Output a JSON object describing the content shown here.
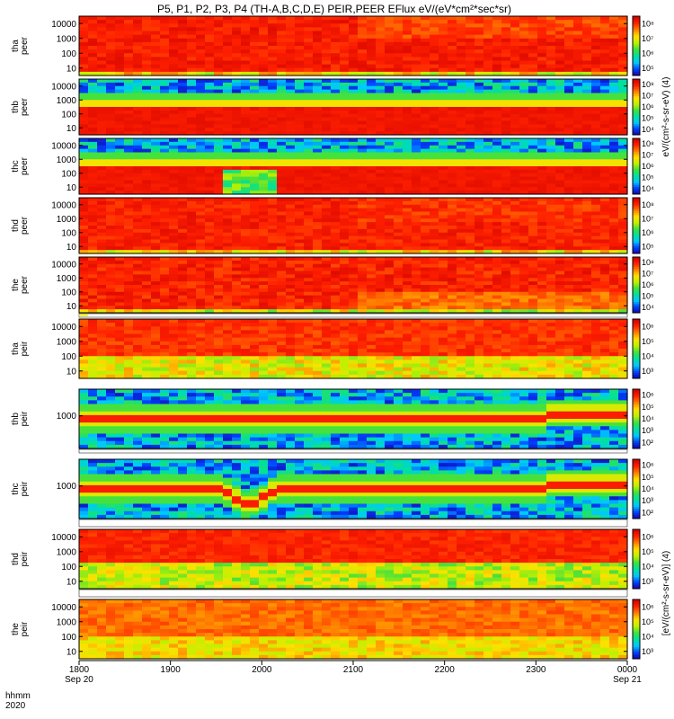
{
  "title": "P5, P1, P2, P3, P4 (TH-A,B,C,D,E) PEIR,PEER EFlux eV/(eV*cm²*sec*sr)",
  "corner_labels": {
    "row1": "hhmm",
    "row2": "2020"
  },
  "time_axis": {
    "ticks": [
      {
        "label": "1800",
        "sublabel": "Sep 20"
      },
      {
        "label": "1900",
        "sublabel": ""
      },
      {
        "label": "2000",
        "sublabel": ""
      },
      {
        "label": "2100",
        "sublabel": ""
      },
      {
        "label": "2200",
        "sublabel": ""
      },
      {
        "label": "2300",
        "sublabel": ""
      },
      {
        "label": "0000",
        "sublabel": "Sep 21"
      }
    ]
  },
  "colorbar_label_top": "eV/(cm²-s-sr-eV) (4)",
  "colorbar_label_bottom": "[eV/(cm²-s-sr-eV)] (4)",
  "colors": {
    "background": "#ffffff",
    "quality_bar_bad": "#000000",
    "quality_bar_warn": "#ffff00",
    "colormap": [
      "#1a00a0",
      "#0040ff",
      "#00c8ff",
      "#00e0a0",
      "#40e040",
      "#c0f000",
      "#ffe000",
      "#ff8000",
      "#ff2000",
      "#d00000"
    ]
  },
  "chart_data": [
    {
      "type": "heatmap",
      "probe": "tha",
      "species": "peer",
      "ylabel": "tha\npeer",
      "yticks": [
        "10",
        "100",
        "1000",
        "10000"
      ],
      "yscale": "log",
      "colorbar_ticks": [
        "10⁵",
        "10⁶",
        "10⁷",
        "10⁸"
      ],
      "description": "Electron spectrogram, high energy flux (red) from ~10 eV to 10000 eV throughout"
    },
    {
      "type": "heatmap",
      "probe": "thb",
      "species": "peer",
      "ylabel": "thb\npeer",
      "yticks": [
        "10",
        "100",
        "1000",
        "10000"
      ],
      "yscale": "log",
      "colorbar_ticks": [
        "10⁴",
        "10⁵",
        "10⁶",
        "10⁷",
        "10⁸"
      ],
      "description": "Flux peaks below ~500 eV, noisy blue above ~1000 eV"
    },
    {
      "type": "heatmap",
      "probe": "thc",
      "species": "peer",
      "ylabel": "thc\npeer",
      "yticks": [
        "10",
        "100",
        "1000",
        "10000"
      ],
      "yscale": "log",
      "colorbar_ticks": [
        "10⁴",
        "10⁵",
        "10⁶",
        "10⁷",
        "10⁸"
      ],
      "description": "Similar to thb, with low-flux gap near 1950-2000"
    },
    {
      "type": "heatmap",
      "probe": "thd",
      "species": "peer",
      "ylabel": "thd\npeer",
      "yticks": [
        "10",
        "100",
        "1000",
        "10000"
      ],
      "yscale": "log",
      "colorbar_ticks": [
        "10⁵",
        "10⁶",
        "10⁷",
        "10⁸"
      ],
      "description": "High flux, change in character after ~2110"
    },
    {
      "type": "heatmap",
      "probe": "the",
      "species": "peer",
      "ylabel": "the\npeer",
      "yticks": [
        "10",
        "100",
        "1000",
        "10000"
      ],
      "yscale": "log",
      "colorbar_ticks": [
        "10⁴",
        "10⁵",
        "10⁶",
        "10⁷",
        "10⁸"
      ],
      "description": "High flux, change in character after ~2110"
    },
    {
      "type": "heatmap",
      "probe": "tha",
      "species": "peir",
      "ylabel": "tha\npeir",
      "yticks": [
        "10",
        "100",
        "1000",
        "10000"
      ],
      "yscale": "log",
      "colorbar_ticks": [
        "10³",
        "10⁴",
        "10⁵",
        "10⁶"
      ],
      "description": "Ion spectrogram, red flux above ~100 eV"
    },
    {
      "type": "heatmap",
      "probe": "thb",
      "species": "peir",
      "ylabel": "thb\npeir",
      "yticks": [
        "1000"
      ],
      "yscale": "log",
      "colorbar_ticks": [
        "10²",
        "10³",
        "10⁴",
        "10⁵",
        "10⁶"
      ],
      "description": "Narrow red band near ~700 eV rising after ~2330"
    },
    {
      "type": "heatmap",
      "probe": "thc",
      "species": "peir",
      "ylabel": "thc\npeir",
      "yticks": [
        "1000"
      ],
      "yscale": "log",
      "colorbar_ticks": [
        "10²",
        "10³",
        "10⁴",
        "10⁵",
        "10⁶"
      ],
      "description": "Narrow red band near ~700 eV with V-shaped dip near 1950-2000"
    },
    {
      "type": "heatmap",
      "probe": "thd",
      "species": "peir",
      "ylabel": "thd\npeir",
      "yticks": [
        "10",
        "100",
        "1000",
        "10000"
      ],
      "yscale": "log",
      "colorbar_ticks": [
        "10³",
        "10⁴",
        "10⁵",
        "10⁶"
      ],
      "description": "Red flux above ~1000 eV"
    },
    {
      "type": "heatmap",
      "probe": "the",
      "species": "peir",
      "ylabel": "the\npeir",
      "yticks": [
        "10",
        "100",
        "1000",
        "10000"
      ],
      "yscale": "log",
      "colorbar_ticks": [
        "10³",
        "10⁴",
        "10⁵",
        "10⁶"
      ],
      "description": "Orange/yellow flux above ~100 eV"
    }
  ]
}
